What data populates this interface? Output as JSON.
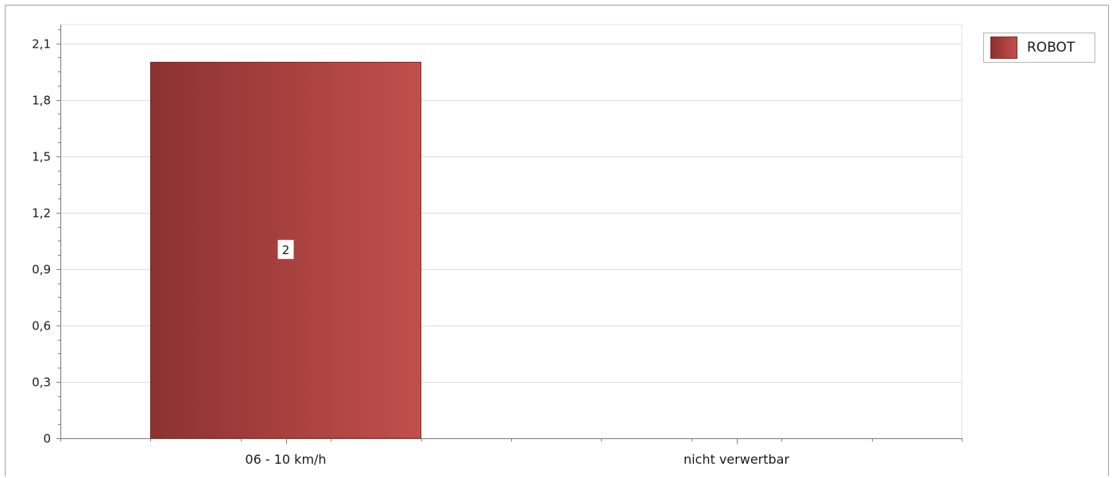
{
  "chart_data": {
    "type": "bar",
    "categories": [
      "06 - 10 km/h",
      "nicht verwertbar"
    ],
    "series": [
      {
        "name": "ROBOT",
        "values": [
          2,
          0
        ]
      }
    ],
    "data_labels": [
      "2",
      ""
    ],
    "yticks": [
      "0",
      "0,3",
      "0,6",
      "0,9",
      "1,2",
      "1,5",
      "1,8",
      "2,1"
    ],
    "ytick_values": [
      0,
      0.3,
      0.6,
      0.9,
      1.2,
      1.5,
      1.8,
      2.1
    ],
    "ylim": [
      0,
      2.2
    ],
    "title": "",
    "xlabel": "",
    "ylabel": "",
    "grid": true,
    "legend_position": "top-right",
    "colors": {
      "bar_dark": "#8c3230",
      "bar_light": "#c24f4c",
      "grid": "#dcdcdc",
      "axis": "#7f7f7f"
    }
  }
}
